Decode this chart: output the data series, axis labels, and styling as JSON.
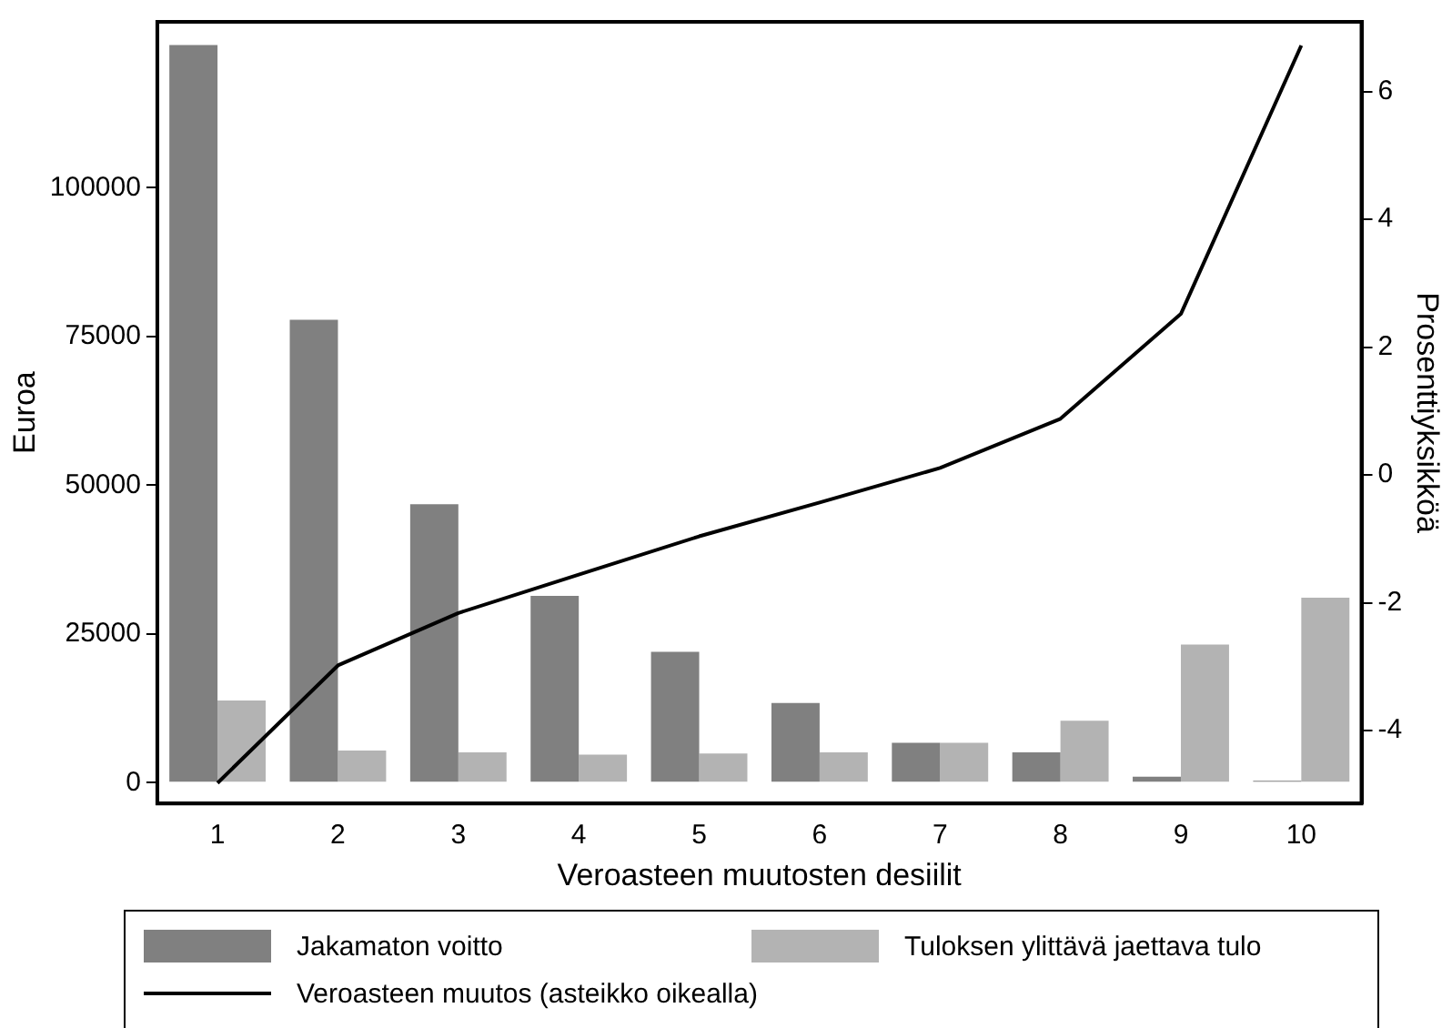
{
  "chart_data": {
    "type": "bar",
    "xlabel": "Veroasteen muutosten desiilit",
    "ylabel": "Euroa",
    "y2label": "Prosenttiyksikköä",
    "categories": [
      "1",
      "2",
      "3",
      "4",
      "5",
      "6",
      "7",
      "8",
      "9",
      "10"
    ],
    "series": [
      {
        "name": "Jakamaton voitto",
        "color": "#808080",
        "values": [
          124000,
          77800,
          46800,
          31400,
          22000,
          13400,
          6700,
          5100,
          1000,
          300
        ]
      },
      {
        "name": "Tuloksen ylittävä jaettava tulo",
        "color": "#b3b3b3",
        "values": [
          13800,
          5400,
          5100,
          4700,
          4900,
          5100,
          6700,
          10400,
          23200,
          31100
        ]
      },
      {
        "name": "Veroasteen muutos (asteikko oikealla)",
        "type": "line",
        "axis": "y2",
        "color": "#000000",
        "values": [
          -4.82,
          -2.98,
          -2.16,
          -1.56,
          -0.96,
          -0.43,
          0.11,
          0.88,
          2.52,
          6.72
        ]
      }
    ],
    "ylim": [
      -3500,
      127900
    ],
    "yticks": [
      0,
      25000,
      50000,
      75000,
      100000
    ],
    "y2lim": [
      -5.14,
      7.09
    ],
    "y2ticks": [
      -4,
      -2,
      0,
      2,
      4,
      6
    ],
    "grid": false,
    "legend": "bottom",
    "marker": "none",
    "line_style": "solid"
  }
}
